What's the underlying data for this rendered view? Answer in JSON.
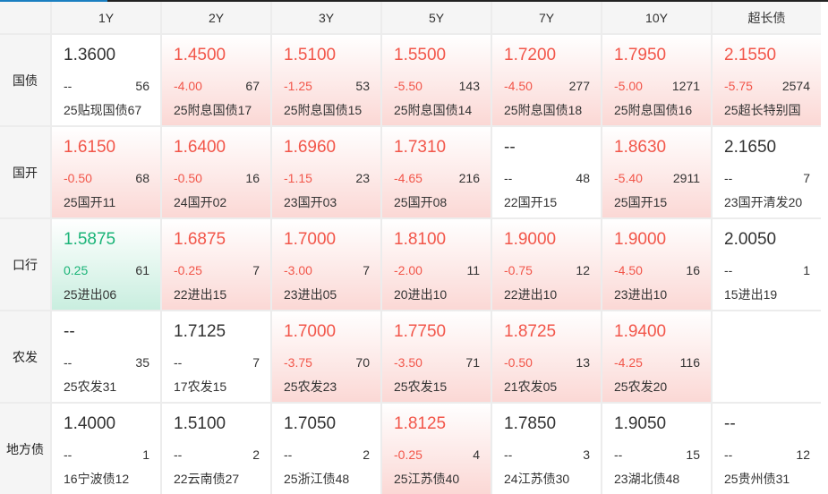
{
  "columns": [
    "1Y",
    "2Y",
    "3Y",
    "5Y",
    "7Y",
    "10Y",
    "超长债"
  ],
  "colors": {
    "up": "#f2564a",
    "down": "#1bb478"
  },
  "rows": [
    {
      "label": "国债",
      "cells": [
        {
          "yield": "1.3600",
          "change": "--",
          "count": "56",
          "bond": "25贴现国债67",
          "trend": "none"
        },
        {
          "yield": "1.4500",
          "change": "-4.00",
          "count": "67",
          "bond": "25附息国债17",
          "trend": "up"
        },
        {
          "yield": "1.5100",
          "change": "-1.25",
          "count": "53",
          "bond": "25附息国债15",
          "trend": "up"
        },
        {
          "yield": "1.5500",
          "change": "-5.50",
          "count": "143",
          "bond": "25附息国债14",
          "trend": "up"
        },
        {
          "yield": "1.7200",
          "change": "-4.50",
          "count": "277",
          "bond": "25附息国债18",
          "trend": "up"
        },
        {
          "yield": "1.7950",
          "change": "-5.00",
          "count": "1271",
          "bond": "25附息国债16",
          "trend": "up"
        },
        {
          "yield": "2.1550",
          "change": "-5.75",
          "count": "2574",
          "bond": "25超长特别国",
          "trend": "up"
        }
      ]
    },
    {
      "label": "国开",
      "cells": [
        {
          "yield": "1.6150",
          "change": "-0.50",
          "count": "68",
          "bond": "25国开11",
          "trend": "up"
        },
        {
          "yield": "1.6400",
          "change": "-0.50",
          "count": "16",
          "bond": "24国开02",
          "trend": "up"
        },
        {
          "yield": "1.6960",
          "change": "-1.15",
          "count": "23",
          "bond": "23国开03",
          "trend": "up"
        },
        {
          "yield": "1.7310",
          "change": "-4.65",
          "count": "216",
          "bond": "25国开08",
          "trend": "up"
        },
        {
          "yield": "--",
          "change": "--",
          "count": "48",
          "bond": "22国开15",
          "trend": "none"
        },
        {
          "yield": "1.8630",
          "change": "-5.40",
          "count": "2911",
          "bond": "25国开15",
          "trend": "up"
        },
        {
          "yield": "2.1650",
          "change": "--",
          "count": "7",
          "bond": "23国开清发20",
          "trend": "none"
        }
      ]
    },
    {
      "label": "口行",
      "cells": [
        {
          "yield": "1.5875",
          "change": "0.25",
          "count": "61",
          "bond": "25进出06",
          "trend": "dn"
        },
        {
          "yield": "1.6875",
          "change": "-0.25",
          "count": "7",
          "bond": "22进出15",
          "trend": "up"
        },
        {
          "yield": "1.7000",
          "change": "-3.00",
          "count": "7",
          "bond": "23进出05",
          "trend": "up"
        },
        {
          "yield": "1.8100",
          "change": "-2.00",
          "count": "11",
          "bond": "20进出10",
          "trend": "up"
        },
        {
          "yield": "1.9000",
          "change": "-0.75",
          "count": "12",
          "bond": "22进出10",
          "trend": "up"
        },
        {
          "yield": "1.9000",
          "change": "-4.50",
          "count": "16",
          "bond": "23进出10",
          "trend": "up"
        },
        {
          "yield": "2.0050",
          "change": "--",
          "count": "1",
          "bond": "15进出19",
          "trend": "none"
        }
      ]
    },
    {
      "label": "农发",
      "cells": [
        {
          "yield": "--",
          "change": "--",
          "count": "35",
          "bond": "25农发31",
          "trend": "none"
        },
        {
          "yield": "1.7125",
          "change": "--",
          "count": "7",
          "bond": "17农发15",
          "trend": "none"
        },
        {
          "yield": "1.7000",
          "change": "-3.75",
          "count": "70",
          "bond": "25农发23",
          "trend": "up"
        },
        {
          "yield": "1.7750",
          "change": "-3.50",
          "count": "71",
          "bond": "25农发15",
          "trend": "up"
        },
        {
          "yield": "1.8725",
          "change": "-0.50",
          "count": "13",
          "bond": "21农发05",
          "trend": "up"
        },
        {
          "yield": "1.9400",
          "change": "-4.25",
          "count": "116",
          "bond": "25农发20",
          "trend": "up"
        },
        null
      ]
    },
    {
      "label": "地方债",
      "cells": [
        {
          "yield": "1.4000",
          "change": "--",
          "count": "1",
          "bond": "16宁波债12",
          "trend": "none"
        },
        {
          "yield": "1.5100",
          "change": "--",
          "count": "2",
          "bond": "22云南债27",
          "trend": "none"
        },
        {
          "yield": "1.7050",
          "change": "--",
          "count": "2",
          "bond": "25浙江债48",
          "trend": "none"
        },
        {
          "yield": "1.8125",
          "change": "-0.25",
          "count": "4",
          "bond": "25江苏债40",
          "trend": "up"
        },
        {
          "yield": "1.7850",
          "change": "--",
          "count": "3",
          "bond": "24江苏债30",
          "trend": "none"
        },
        {
          "yield": "1.9050",
          "change": "--",
          "count": "15",
          "bond": "23湖北债48",
          "trend": "none"
        },
        {
          "yield": "--",
          "change": "--",
          "count": "12",
          "bond": "25贵州债31",
          "trend": "none"
        }
      ]
    }
  ]
}
